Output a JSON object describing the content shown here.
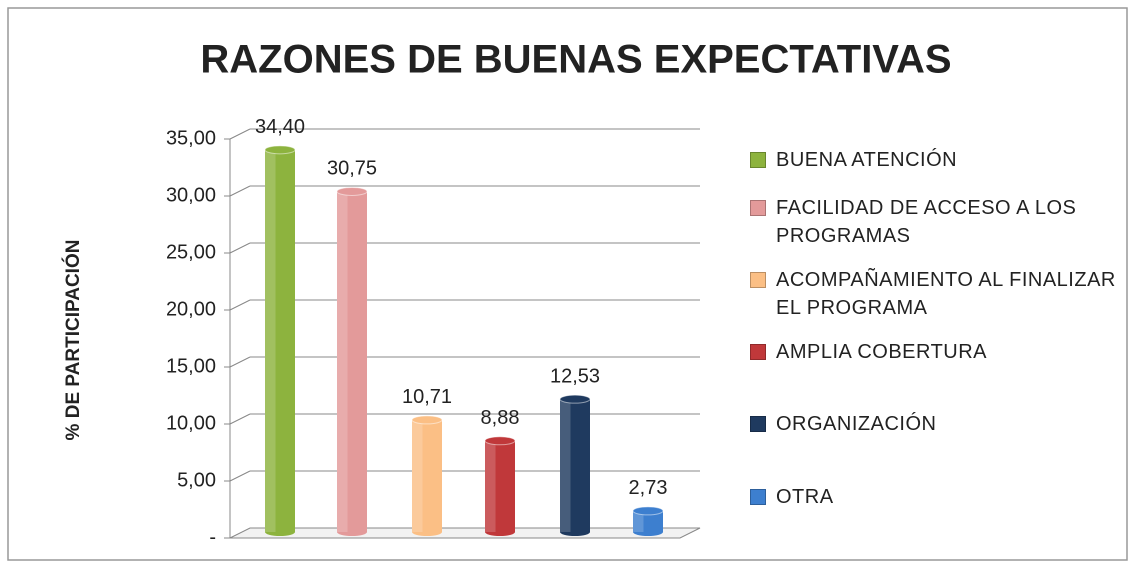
{
  "chart_data": {
    "type": "bar",
    "title": "RAZONES DE BUENAS EXPECTATIVAS",
    "y_label": "% DE PARTICIPACIÓN",
    "categories": [
      "BUENA ATENCIÓN",
      "FACILIDAD DE ACCESO A LOS PROGRAMAS",
      "ACOMPAÑAMIENTO AL FINALIZAR EL PROGRAMA",
      "AMPLIA COBERTURA",
      "ORGANIZACIÓN",
      "OTRA"
    ],
    "values": [
      34.4,
      30.75,
      10.71,
      8.88,
      12.53,
      2.73
    ],
    "value_labels": [
      "34,40",
      "30,75",
      "10,71",
      "8,88",
      "12,53",
      "2,73"
    ],
    "colors": [
      "#8db33e",
      "#e39a9a",
      "#fbbf85",
      "#c0383a",
      "#1f3a5f",
      "#3d7fcf"
    ],
    "ylim": [
      0,
      35
    ],
    "yticks": [
      {
        "value": 0,
        "label": "-"
      },
      {
        "value": 5,
        "label": "5,00"
      },
      {
        "value": 10,
        "label": "10,00"
      },
      {
        "value": 15,
        "label": "15,00"
      },
      {
        "value": 20,
        "label": "20,00"
      },
      {
        "value": 25,
        "label": "25,00"
      },
      {
        "value": 30,
        "label": "30,00"
      },
      {
        "value": 35,
        "label": "35,00"
      }
    ],
    "grid": true
  }
}
